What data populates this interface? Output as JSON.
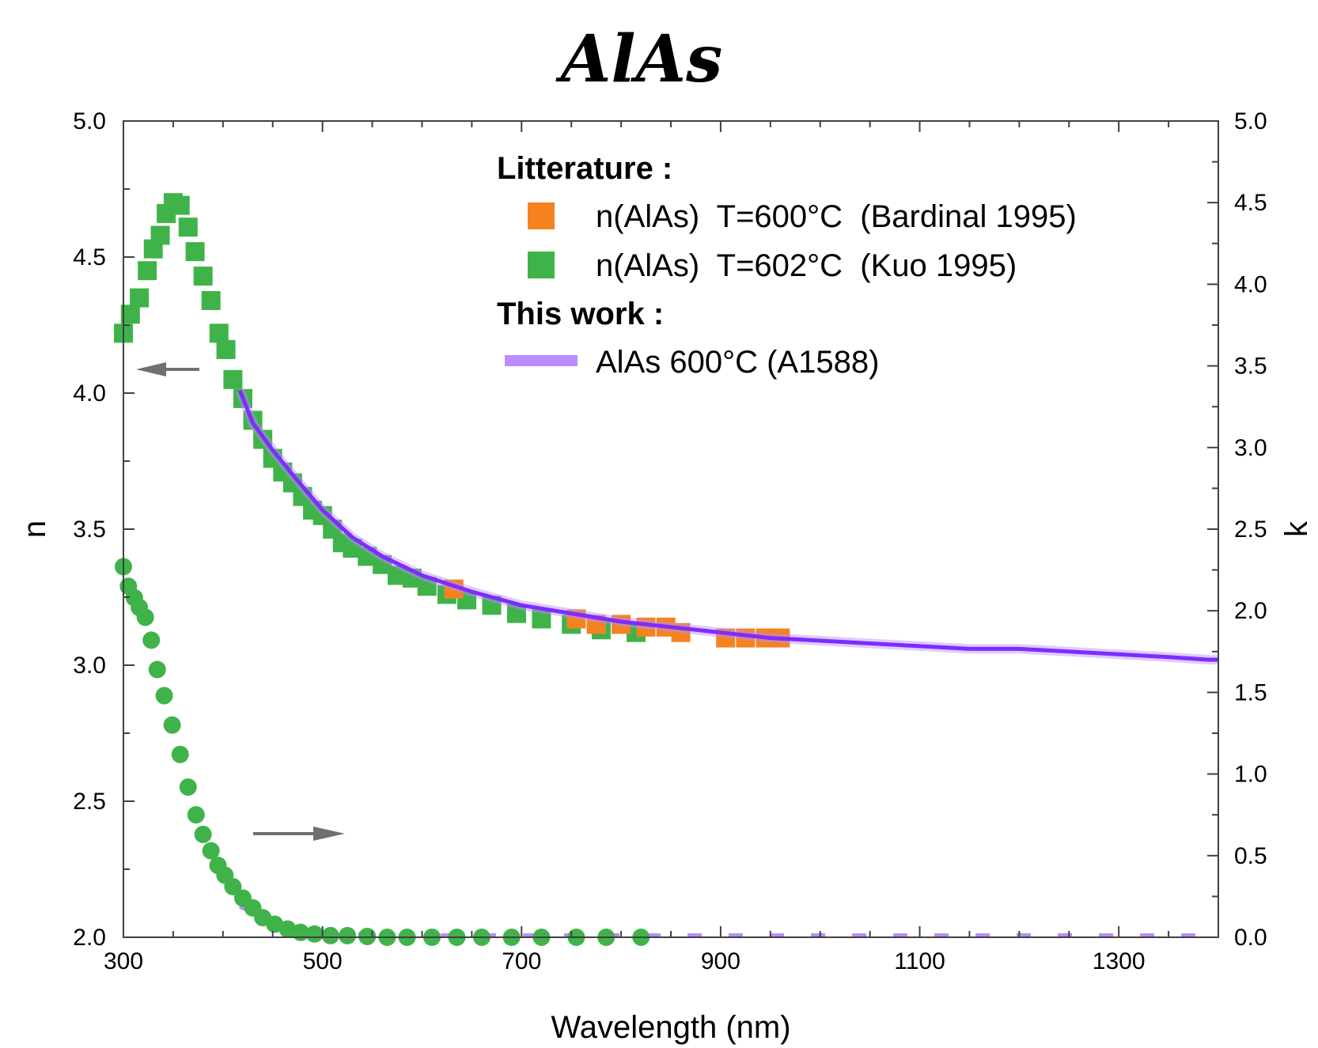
{
  "chart_data": {
    "type": "scatter",
    "title": "AlAs",
    "xlabel": "Wavelength (nm)",
    "ylabel_left": "n",
    "ylabel_right": "k",
    "xlim": [
      300,
      1400
    ],
    "ylim_left": [
      2.0,
      5.0
    ],
    "ylim_right": [
      0.0,
      5.0
    ],
    "x_ticks": [
      300,
      500,
      700,
      900,
      1100,
      1300
    ],
    "y_left_ticks": [
      "2.0",
      "2.5",
      "3.0",
      "3.5",
      "4.0",
      "4.5",
      "5.0"
    ],
    "y_right_ticks": [
      "0.0",
      "0.5",
      "1.0",
      "1.5",
      "2.0",
      "2.5",
      "3.0",
      "3.5",
      "4.0",
      "4.5",
      "5.0"
    ],
    "grid": false,
    "legend_position": "top-right",
    "colors": {
      "bardinal": "#f5821f",
      "kuo": "#3fb34a",
      "this_work": "#7f2bff",
      "this_work_k": "#b98cff",
      "arrow": "#707070"
    },
    "legend": {
      "group1_title": "Litterature :",
      "group2_title": "This work :",
      "items": [
        {
          "label": "n(AlAs)  T=600°C  (Bardinal 1995)",
          "color": "#f5821f",
          "marker": "square"
        },
        {
          "label": "n(AlAs)  T=602°C  (Kuo 1995)",
          "color": "#3fb34a",
          "marker": "square"
        },
        {
          "label": "AlAs 600°C (A1588)",
          "color": "#b98cff",
          "marker": "line"
        }
      ]
    },
    "series": [
      {
        "name": "n(AlAs)  T=602°C  (Kuo 1995)",
        "axis": "left",
        "marker": "square",
        "x": [
          300,
          307,
          316,
          324,
          330,
          337,
          343,
          350,
          357,
          365,
          372,
          380,
          388,
          396,
          403,
          410,
          420,
          430,
          440,
          450,
          460,
          470,
          480,
          490,
          500,
          510,
          520,
          530,
          545,
          560,
          575,
          590,
          605,
          625,
          645,
          670,
          695,
          720,
          750,
          780,
          815
        ],
        "y": [
          4.22,
          4.29,
          4.35,
          4.45,
          4.53,
          4.58,
          4.66,
          4.7,
          4.69,
          4.61,
          4.52,
          4.43,
          4.34,
          4.22,
          4.16,
          4.05,
          3.98,
          3.9,
          3.83,
          3.76,
          3.71,
          3.67,
          3.62,
          3.57,
          3.55,
          3.5,
          3.45,
          3.43,
          3.4,
          3.37,
          3.33,
          3.32,
          3.29,
          3.26,
          3.24,
          3.22,
          3.19,
          3.17,
          3.15,
          3.13,
          3.12
        ]
      },
      {
        "name": "n(AlAs)  T=600°C  (Bardinal 1995)",
        "axis": "left",
        "marker": "square",
        "x": [
          632,
          755,
          775,
          800,
          825,
          845,
          860,
          905,
          925,
          945,
          960
        ],
        "y": [
          3.28,
          3.17,
          3.15,
          3.15,
          3.14,
          3.14,
          3.12,
          3.1,
          3.1,
          3.1,
          3.1
        ]
      },
      {
        "name": "AlAs 600°C (A1588)",
        "axis": "left",
        "marker": "line",
        "x": [
          417,
          430,
          450,
          470,
          500,
          530,
          560,
          600,
          650,
          700,
          750,
          800,
          850,
          900,
          950,
          1000,
          1050,
          1100,
          1150,
          1200,
          1250,
          1300,
          1350,
          1390,
          1400
        ],
        "y": [
          4.01,
          3.89,
          3.79,
          3.7,
          3.57,
          3.47,
          3.4,
          3.33,
          3.27,
          3.22,
          3.19,
          3.16,
          3.14,
          3.12,
          3.1,
          3.09,
          3.08,
          3.07,
          3.06,
          3.06,
          3.05,
          3.04,
          3.03,
          3.02,
          3.02
        ]
      },
      {
        "name": "k(AlAs)  T=602°C  (Kuo 1995)",
        "axis": "right",
        "marker": "circle",
        "x": [
          300,
          305,
          311,
          316,
          322,
          328,
          334,
          341,
          349,
          357,
          365,
          373,
          380,
          388,
          395,
          402,
          410,
          420,
          430,
          440,
          452,
          465,
          478,
          492,
          508,
          525,
          545,
          565,
          585,
          610,
          635,
          660,
          690,
          720,
          755,
          785,
          820
        ],
        "y": [
          2.27,
          2.15,
          2.08,
          2.02,
          1.96,
          1.82,
          1.64,
          1.48,
          1.3,
          1.12,
          0.92,
          0.75,
          0.63,
          0.53,
          0.44,
          0.38,
          0.31,
          0.24,
          0.18,
          0.12,
          0.08,
          0.05,
          0.03,
          0.02,
          0.01,
          0.01,
          0.005,
          0.0,
          0.0,
          0.0,
          0.0,
          0.0,
          0.0,
          0.0,
          0.0,
          0.0,
          0.0
        ]
      },
      {
        "name": "AlAs 600°C (A1588) k",
        "axis": "right",
        "marker": "dashed-line",
        "x": [
          417,
          450,
          480,
          520,
          600,
          700,
          800,
          900,
          1000,
          1100,
          1200,
          1300,
          1400
        ],
        "y": [
          0.18,
          0.09,
          0.03,
          0.01,
          0.0,
          0.0,
          0.0,
          0.0,
          0.0,
          0.0,
          0.0,
          0.0,
          0.0
        ]
      }
    ]
  }
}
